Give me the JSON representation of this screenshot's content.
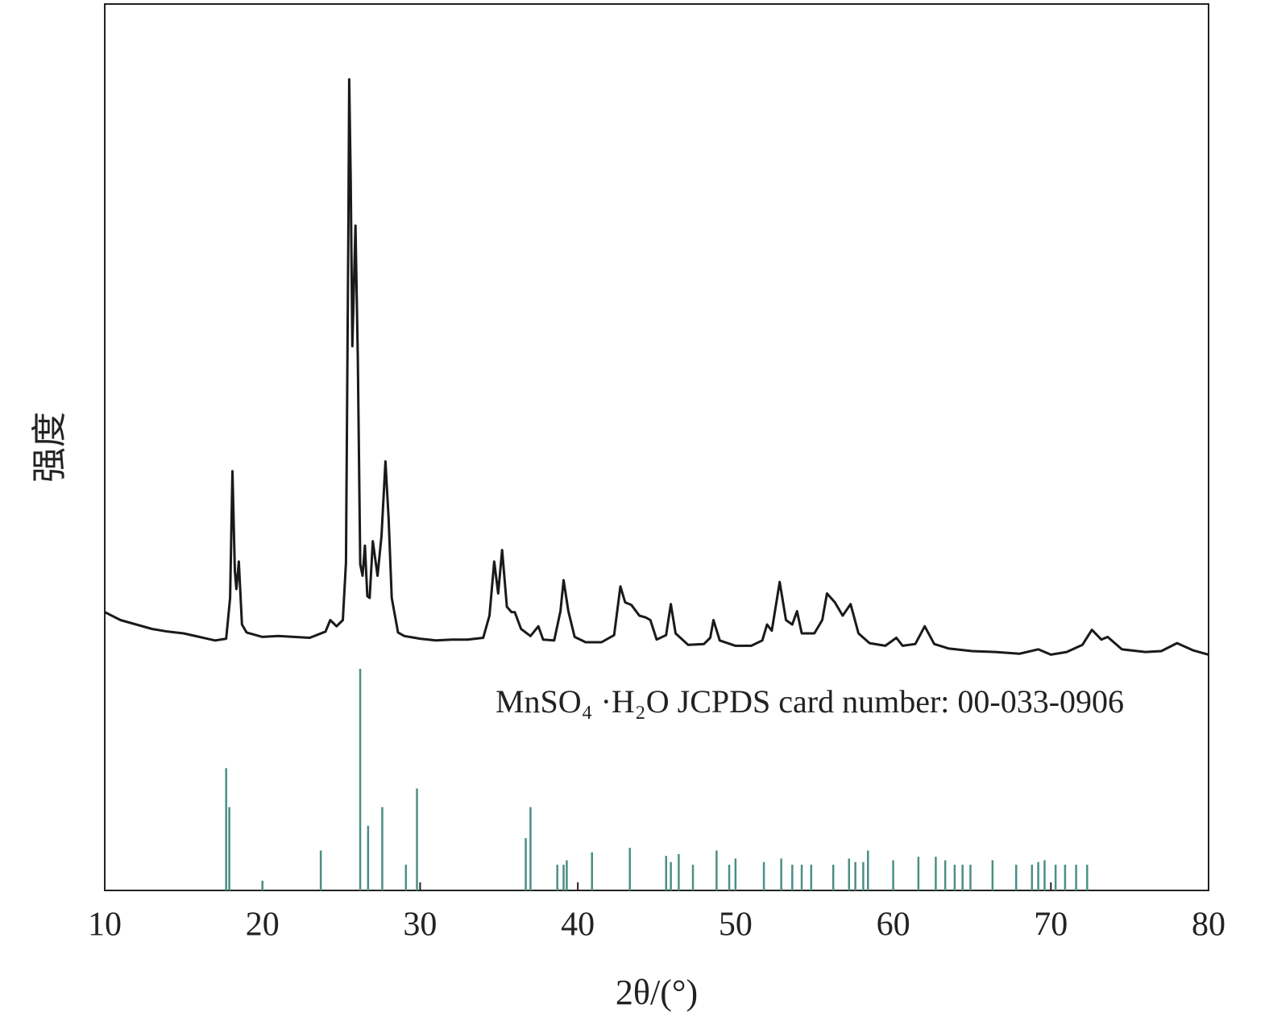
{
  "chart_data": {
    "type": "line",
    "x_label": "2θ/(°)",
    "y_label": "强度",
    "annotation": "MnSO₄ ·H₂O JCPDS card number: 00-033-0906",
    "annotation_color": "#3d9a8a",
    "xlim": [
      10,
      80
    ],
    "xticks": [
      10,
      20,
      30,
      40,
      50,
      60,
      70,
      80
    ],
    "ylim": [
      0,
      100
    ],
    "series": [
      {
        "type": "line",
        "color": "#1a1a1a",
        "x": [
          10,
          11,
          12,
          13,
          14,
          15,
          16,
          17,
          17.7,
          17.95,
          18.1,
          18.25,
          18.35,
          18.5,
          18.7,
          19,
          20,
          21,
          22,
          23,
          24,
          24.3,
          24.7,
          25.1,
          25.3,
          25.45,
          25.5,
          25.6,
          25.7,
          25.8,
          25.9,
          26.05,
          26.2,
          26.35,
          26.5,
          26.65,
          26.8,
          27.0,
          27.3,
          27.55,
          27.8,
          28.0,
          28.2,
          28.6,
          29,
          30,
          31,
          32,
          33,
          34,
          34.4,
          34.7,
          34.95,
          35.2,
          35.5,
          35.8,
          36.0,
          36.4,
          37,
          37.5,
          37.8,
          38.5,
          38.9,
          39.1,
          39.4,
          39.8,
          40.5,
          41.5,
          42.3,
          42.7,
          43.0,
          43.4,
          43.9,
          44.3,
          44.6,
          45.0,
          45.6,
          45.9,
          46.2,
          47,
          48,
          48.4,
          48.6,
          49.0,
          50,
          51,
          51.7,
          52.0,
          52.3,
          52.8,
          53.2,
          53.6,
          53.9,
          54.2,
          55.0,
          55.5,
          55.8,
          56.3,
          56.8,
          57.3,
          57.8,
          58.5,
          59.5,
          60.2,
          60.6,
          61.4,
          62,
          62.6,
          63.5,
          65,
          66.5,
          68,
          69.2,
          70,
          71,
          72,
          72.6,
          73.2,
          73.6,
          74.5,
          76,
          77,
          78,
          79,
          80
        ],
        "values": [
          31.4,
          30.5,
          30,
          29.5,
          29.2,
          29,
          28.6,
          28.2,
          28.4,
          33,
          47.3,
          36,
          34,
          37.1,
          30,
          29.1,
          28.6,
          28.7,
          28.6,
          28.5,
          29.2,
          30.5,
          29.8,
          30.5,
          37,
          75,
          91.5,
          80,
          61.4,
          68,
          75,
          60,
          36.8,
          35.5,
          38.9,
          33.2,
          33,
          39.4,
          35.5,
          40,
          48.4,
          42,
          33,
          29.1,
          28.7,
          28.4,
          28.2,
          28.3,
          28.3,
          28.5,
          31,
          37.1,
          33.5,
          38.4,
          32,
          31.4,
          31.4,
          29.5,
          28.7,
          29.8,
          28.3,
          28.2,
          31.5,
          35,
          31.5,
          28.6,
          28,
          28,
          28.8,
          34.3,
          32.5,
          32.2,
          31,
          30.8,
          30.5,
          28.3,
          28.8,
          32.3,
          29,
          27.7,
          27.8,
          28.5,
          30.5,
          28.2,
          27.6,
          27.6,
          28.2,
          30,
          29.3,
          34.8,
          30.5,
          30,
          31.5,
          29,
          29,
          30.5,
          33.5,
          32.5,
          31,
          32.3,
          29,
          27.9,
          27.6,
          28.5,
          27.6,
          27.8,
          29.8,
          27.8,
          27.3,
          27,
          26.9,
          26.7,
          27.2,
          26.6,
          26.9,
          27.7,
          29.4,
          28.3,
          28.6,
          27.2,
          26.9,
          27,
          27.9,
          27.1,
          26.6
        ]
      },
      {
        "type": "stick",
        "color": "#4a8f84",
        "x": [
          17.7,
          17.9,
          20.0,
          23.7,
          26.2,
          26.7,
          27.6,
          29.1,
          29.8,
          36.7,
          37.0,
          38.7,
          39.1,
          39.3,
          40.9,
          43.3,
          45.6,
          45.9,
          46.4,
          47.3,
          48.8,
          49.6,
          50.0,
          51.8,
          52.9,
          53.6,
          54.2,
          54.8,
          56.2,
          57.2,
          57.6,
          58.1,
          58.4,
          60.0,
          61.6,
          62.7,
          63.3,
          63.9,
          64.4,
          64.9,
          66.3,
          67.8,
          68.8,
          69.2,
          69.6,
          70.3,
          70.9,
          71.6,
          72.3
        ],
        "values": [
          13.8,
          9.4,
          1.1,
          4.5,
          25,
          7.3,
          9.4,
          2.9,
          11.5,
          5.9,
          9.4,
          2.9,
          2.9,
          3.4,
          4.3,
          4.8,
          3.9,
          3.2,
          4.1,
          2.9,
          4.5,
          2.9,
          3.6,
          3.2,
          3.6,
          2.9,
          2.9,
          2.9,
          2.9,
          3.6,
          3.2,
          3.2,
          4.5,
          3.4,
          3.8,
          3.8,
          3.4,
          2.9,
          2.9,
          2.9,
          3.4,
          2.9,
          2.9,
          3.2,
          3.4,
          2.9,
          2.9,
          2.9,
          2.9
        ]
      }
    ]
  }
}
